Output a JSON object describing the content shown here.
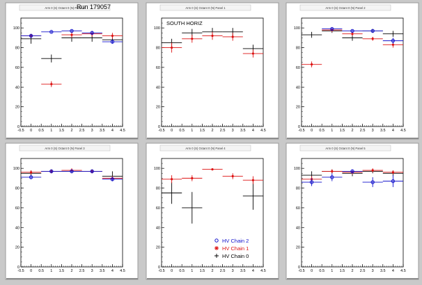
{
  "run_label": "Run 179057",
  "colors": {
    "chain2": "#1010cc",
    "chain1": "#dd1111",
    "chain0": "#000000",
    "pad_bg": "#ffffff",
    "canvas_bg": "#c9c9c9"
  },
  "legend": {
    "entries": [
      {
        "label": "HV Chain 2",
        "series": "chain2",
        "marker": "circle"
      },
      {
        "label": "HV Chain 1",
        "series": "chain1",
        "marker": "star"
      },
      {
        "label": "HV Chain 0",
        "series": "chain0",
        "marker": "cross"
      }
    ]
  },
  "chart_data": [
    {
      "type": "scatter",
      "title": "Arm 0 (S) Octant 0 (N) Panel 0",
      "annotation": "",
      "xlim": [
        -0.5,
        4.5
      ],
      "ylim": [
        0,
        110
      ],
      "xticks": [
        "-0.5",
        "0",
        "0.5",
        "1",
        "1.5",
        "2",
        "2.5",
        "3",
        "3.5",
        "4",
        "4.5"
      ],
      "yticks": [
        "0",
        "20",
        "40",
        "60",
        "80",
        "100"
      ],
      "series": [
        {
          "key": "chain0",
          "x": [
            0,
            1,
            2,
            3,
            4
          ],
          "y": [
            89,
            69,
            90,
            90,
            88
          ],
          "yerr": [
            5,
            4,
            4,
            4,
            3
          ]
        },
        {
          "key": "chain1",
          "x": [
            0,
            1,
            2,
            3,
            4
          ],
          "y": [
            92,
            43,
            93,
            94,
            92
          ],
          "yerr": [
            2,
            3,
            3,
            3,
            3
          ]
        },
        {
          "key": "chain2",
          "x": [
            0,
            1,
            2,
            3,
            4
          ],
          "y": [
            92,
            96,
            97,
            95,
            86
          ],
          "yerr": [
            2,
            1,
            1,
            2,
            2
          ]
        }
      ]
    },
    {
      "type": "scatter",
      "title": "Arm 0 (S) Octant 0 (N) Panel 1",
      "annotation": "SOUTH HORIZ",
      "xlim": [
        -0.5,
        4.5
      ],
      "ylim": [
        0,
        110
      ],
      "xticks": [
        "-0.5",
        "0",
        "0.5",
        "1",
        "1.5",
        "2",
        "2.5",
        "3",
        "3.5",
        "4",
        "4.5"
      ],
      "yticks": [
        "0",
        "20",
        "40",
        "60",
        "80",
        "100"
      ],
      "series": [
        {
          "key": "chain0",
          "x": [
            0,
            1,
            2,
            3,
            4
          ],
          "y": [
            85,
            95,
            96,
            96,
            79
          ],
          "yerr": [
            4,
            4,
            4,
            4,
            4
          ]
        },
        {
          "key": "chain1",
          "x": [
            0,
            1,
            2,
            3,
            4
          ],
          "y": [
            80,
            89,
            92,
            91,
            74
          ],
          "yerr": [
            5,
            4,
            4,
            4,
            4
          ]
        }
      ]
    },
    {
      "type": "scatter",
      "title": "Arm 0 (S) Octant 0 (N) Panel 2",
      "annotation": "",
      "xlim": [
        -0.5,
        4.5
      ],
      "ylim": [
        0,
        110
      ],
      "xticks": [
        "-0.5",
        "0",
        "0.5",
        "1",
        "1.5",
        "2",
        "2.5",
        "3",
        "3.5",
        "4",
        "4.5"
      ],
      "yticks": [
        "0",
        "20",
        "40",
        "60",
        "80",
        "100"
      ],
      "series": [
        {
          "key": "chain0",
          "x": [
            0,
            1,
            2,
            3,
            4
          ],
          "y": [
            93,
            97,
            90,
            97,
            94
          ],
          "yerr": [
            3,
            2,
            3,
            2,
            3
          ]
        },
        {
          "key": "chain1",
          "x": [
            0,
            1,
            2,
            3,
            4
          ],
          "y": [
            63,
            98,
            94,
            89,
            83
          ],
          "yerr": [
            3,
            2,
            2,
            2,
            3
          ]
        },
        {
          "key": "chain2",
          "x": [
            1,
            2,
            3,
            4
          ],
          "y": [
            99,
            97,
            97,
            87
          ],
          "yerr": [
            1,
            1,
            1,
            3
          ]
        }
      ]
    },
    {
      "type": "scatter",
      "title": "Arm 0 (S) Octant 0 (N) Panel 3",
      "annotation": "",
      "xlim": [
        -0.5,
        4.5
      ],
      "ylim": [
        0,
        110
      ],
      "xticks": [
        "-0.5",
        "0",
        "0.5",
        "1",
        "1.5",
        "2",
        "2.5",
        "3",
        "3.5",
        "4",
        "4.5"
      ],
      "yticks": [
        "0",
        "20",
        "40",
        "60",
        "80",
        "100"
      ],
      "series": [
        {
          "key": "chain0",
          "x": [
            0,
            1,
            2,
            3,
            4
          ],
          "y": [
            95,
            97,
            97,
            97,
            92
          ],
          "yerr": [
            3,
            2,
            2,
            2,
            5
          ]
        },
        {
          "key": "chain1",
          "x": [
            0,
            1,
            2,
            3,
            4
          ],
          "y": [
            96,
            97,
            98,
            97,
            90
          ],
          "yerr": [
            2,
            2,
            2,
            2,
            2
          ]
        },
        {
          "key": "chain2",
          "x": [
            0,
            1,
            2,
            3,
            4
          ],
          "y": [
            91,
            97,
            97,
            97,
            89
          ],
          "yerr": [
            2,
            1,
            1,
            1,
            2
          ]
        }
      ]
    },
    {
      "type": "scatter",
      "title": "Arm 0 (S) Octant 0 (N) Panel 4",
      "annotation": "",
      "xlim": [
        -0.5,
        4.5
      ],
      "ylim": [
        0,
        110
      ],
      "xticks": [
        "-0.5",
        "0",
        "0.5",
        "1",
        "1.5",
        "2",
        "2.5",
        "3",
        "3.5",
        "4",
        "4.5"
      ],
      "yticks": [
        "0",
        "20",
        "40",
        "60",
        "80",
        "100"
      ],
      "series": [
        {
          "key": "chain0",
          "x": [
            0,
            1,
            4
          ],
          "y": [
            75,
            60,
            72
          ],
          "yerr": [
            11,
            16,
            14
          ]
        },
        {
          "key": "chain1",
          "x": [
            0,
            1,
            2,
            3,
            4
          ],
          "y": [
            89,
            90,
            99,
            92,
            88
          ],
          "yerr": [
            4,
            3,
            1,
            3,
            4
          ]
        }
      ]
    },
    {
      "type": "scatter",
      "title": "Arm 0 (S) Octant 0 (N) Panel 5",
      "annotation": "",
      "xlim": [
        -0.5,
        4.5
      ],
      "ylim": [
        0,
        110
      ],
      "xticks": [
        "-0.5",
        "0",
        "0.5",
        "1",
        "1.5",
        "2",
        "2.5",
        "3",
        "3.5",
        "4",
        "4.5"
      ],
      "yticks": [
        "0",
        "20",
        "40",
        "60",
        "80",
        "100"
      ],
      "series": [
        {
          "key": "chain0",
          "x": [
            0,
            1,
            2,
            3,
            4
          ],
          "y": [
            93,
            97,
            95,
            97,
            95
          ],
          "yerr": [
            4,
            2,
            3,
            2,
            3
          ]
        },
        {
          "key": "chain1",
          "x": [
            0,
            1,
            2,
            3,
            4
          ],
          "y": [
            89,
            97,
            96,
            98,
            96
          ],
          "yerr": [
            3,
            2,
            2,
            2,
            2
          ]
        },
        {
          "key": "chain2",
          "x": [
            0,
            1,
            2,
            3,
            4
          ],
          "y": [
            86,
            91,
            97,
            86,
            87
          ],
          "yerr": [
            4,
            4,
            2,
            5,
            6
          ]
        }
      ]
    }
  ]
}
